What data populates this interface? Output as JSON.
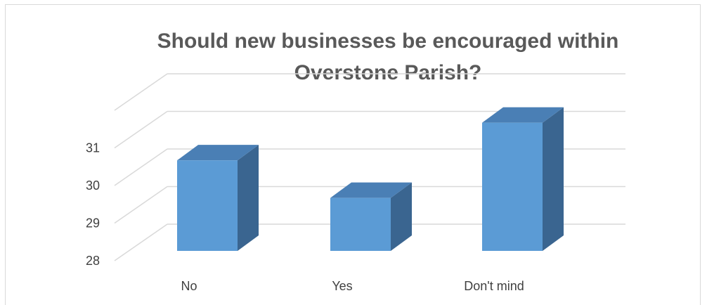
{
  "chart_data": {
    "type": "bar",
    "title": "Should new businesses be encouraged within Overstone Parish?",
    "title_lines": [
      "Should new businesses be encouraged within",
      "Overstone Parish?"
    ],
    "categories": [
      "No",
      "Yes",
      "Don't mind"
    ],
    "values": [
      30,
      29,
      31
    ],
    "ylim": [
      28,
      32
    ],
    "yticks": [
      28,
      29,
      30,
      31
    ],
    "xlabel": "",
    "ylabel": "",
    "grid": true,
    "legend": "none",
    "style": "3d-column"
  },
  "colors": {
    "bar_front": "#5b9bd5",
    "bar_top": "#4a7fb5",
    "bar_side": "#3a6590",
    "gridline": "#d9d9d9",
    "text": "#404040",
    "title": "#595959"
  }
}
